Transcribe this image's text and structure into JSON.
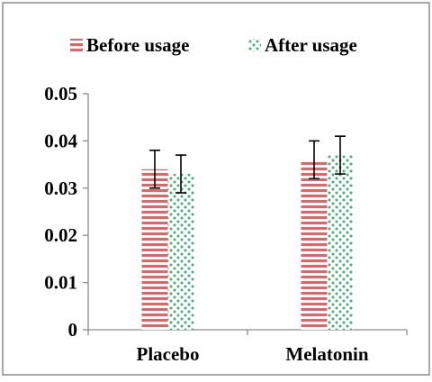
{
  "chart_data": {
    "type": "bar",
    "title": "",
    "xlabel": "",
    "ylabel": "",
    "categories": [
      "Placebo",
      "Melatonin"
    ],
    "series": [
      {
        "name": "Before usage",
        "values": [
          0.034,
          0.036
        ],
        "error": [
          0.004,
          0.004
        ],
        "color": "#e06666",
        "pattern": "horizontal-stripes"
      },
      {
        "name": "After usage",
        "values": [
          0.033,
          0.037
        ],
        "error": [
          0.004,
          0.004
        ],
        "color": "#3cb371",
        "pattern": "dots"
      }
    ],
    "ylim": [
      0,
      0.05
    ],
    "yticks": [
      "0",
      "0.01",
      "0.02",
      "0.03",
      "0.04",
      "0.05"
    ],
    "grid": false,
    "legend_position": "top"
  }
}
